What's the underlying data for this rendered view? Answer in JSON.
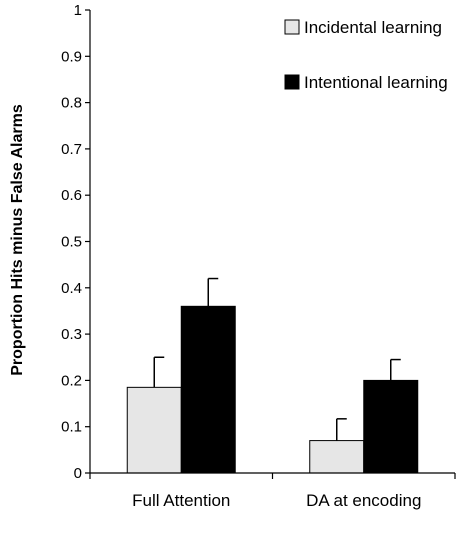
{
  "chart_data": {
    "type": "bar",
    "title": "",
    "xlabel": "",
    "ylabel": "Proportion Hits minus False Alarms",
    "ylim": [
      0,
      1
    ],
    "yticks": [
      "0",
      "0.1",
      "0.2",
      "0.3",
      "0.4",
      "0.5",
      "0.6",
      "0.7",
      "0.8",
      "0.9",
      "1"
    ],
    "categories": [
      "Full Attention",
      "DA at encoding"
    ],
    "series": [
      {
        "name": "Incidental learning",
        "values": [
          0.185,
          0.07
        ],
        "errors": [
          0.065,
          0.047
        ],
        "color": "#e6e6e6"
      },
      {
        "name": "Intentional learning",
        "values": [
          0.36,
          0.2
        ],
        "errors": [
          0.06,
          0.045
        ],
        "color": "#000000"
      }
    ],
    "grid": false,
    "legend_position": "top-right"
  }
}
